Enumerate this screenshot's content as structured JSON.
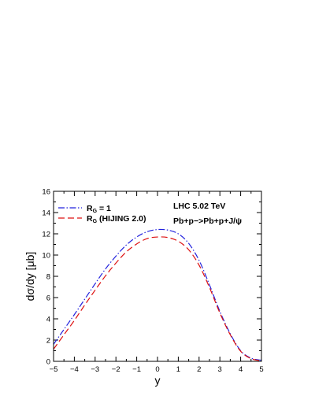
{
  "chart_data": {
    "type": "line",
    "xlabel": "y",
    "ylabel": "dσ/dy [μb]",
    "xlim": [
      -5,
      5
    ],
    "ylim": [
      0,
      16
    ],
    "xticks": [
      -5,
      -4,
      -3,
      -2,
      -1,
      0,
      1,
      2,
      3,
      4,
      5
    ],
    "yticks": [
      0,
      2,
      4,
      6,
      8,
      10,
      12,
      14,
      16
    ],
    "x_minor_step": 0.5,
    "y_minor_step": 1,
    "grid": false,
    "legend_position": "top-left",
    "annotations": [
      "LHC 5.02 TeV",
      "Pb+p−>Pb+p+J/ψ"
    ],
    "series": [
      {
        "name": "R_G = 1",
        "label_main": "R",
        "label_sub": "G",
        "label_rest": " = 1",
        "color": "#2222dd",
        "style": "dash-dot",
        "x": [
          -5,
          -4.5,
          -4,
          -3.5,
          -3,
          -2.5,
          -2,
          -1.5,
          -1,
          -0.5,
          0,
          0.5,
          1,
          1.5,
          2,
          2.5,
          3,
          3.5,
          4,
          4.5,
          5
        ],
        "values": [
          1.6,
          3.0,
          4.4,
          5.85,
          7.3,
          8.7,
          9.9,
          10.95,
          11.7,
          12.2,
          12.4,
          12.35,
          12.0,
          11.1,
          9.5,
          7.2,
          4.7,
          2.6,
          1.0,
          0.3,
          0.1
        ]
      },
      {
        "name": "R_G (HIJING 2.0)",
        "label_main": "R",
        "label_sub": "G",
        "label_rest": " (HIJING 2.0)",
        "color": "#dd1111",
        "style": "dashed",
        "x": [
          -5,
          -4.5,
          -4,
          -3.5,
          -3,
          -2.5,
          -2,
          -1.5,
          -1,
          -0.5,
          0,
          0.5,
          1,
          1.5,
          2,
          2.5,
          3,
          3.5,
          4,
          4.5,
          5
        ],
        "values": [
          1.15,
          2.5,
          3.85,
          5.3,
          6.7,
          8.05,
          9.25,
          10.3,
          11.05,
          11.55,
          11.7,
          11.65,
          11.3,
          10.5,
          9.05,
          6.95,
          4.55,
          2.5,
          0.95,
          0.25,
          0.05
        ]
      }
    ]
  }
}
